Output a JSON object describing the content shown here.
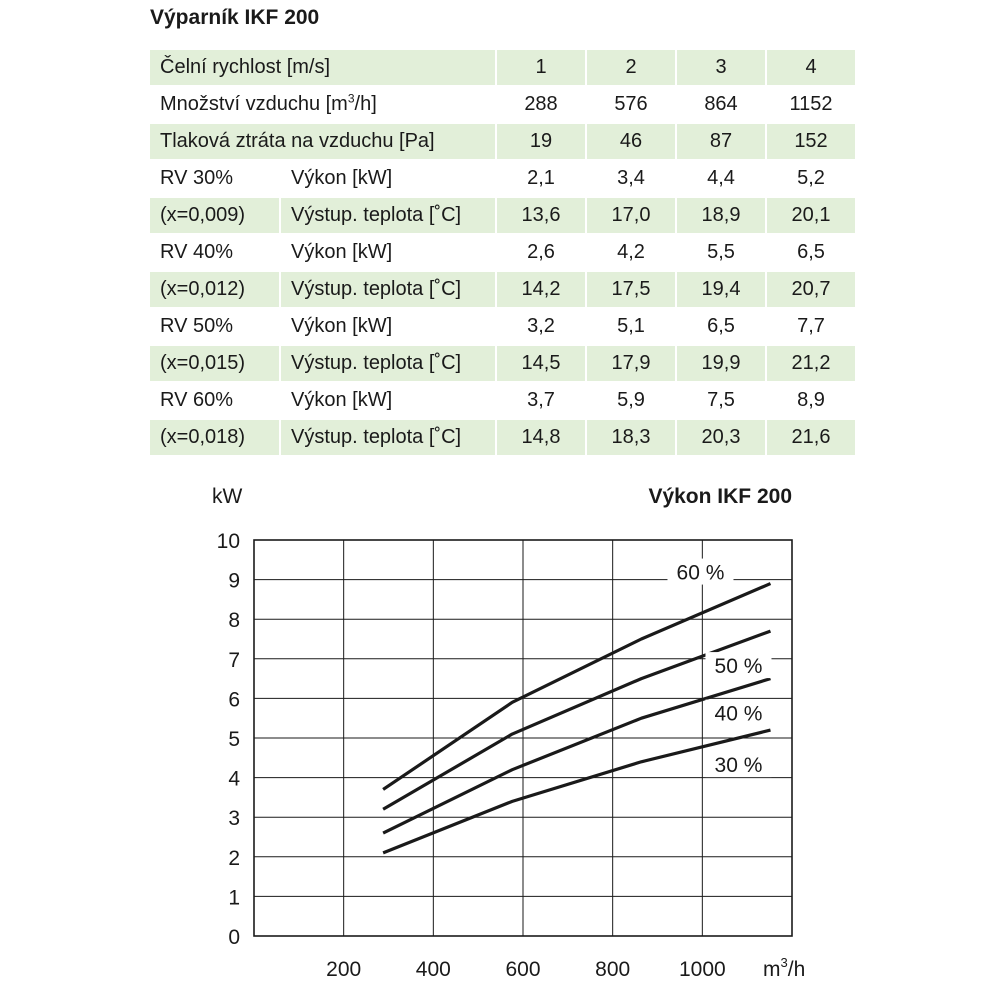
{
  "table": {
    "title": "Výparník IKF 200",
    "rows": [
      {
        "label": "Čelní rychlost [m/s]",
        "values": [
          "1",
          "2",
          "3",
          "4"
        ],
        "shaded": true
      },
      {
        "label": "Množství vzduchu [m3/h]",
        "label_parts": [
          "Množství vzduchu [m",
          "3",
          "/h]"
        ],
        "values": [
          "288",
          "576",
          "864",
          "1152"
        ],
        "shaded": false
      },
      {
        "label": "Tlaková ztráta na vzduchu [Pa]",
        "values": [
          "19",
          "46",
          "87",
          "152"
        ],
        "shaded": true
      },
      {
        "group": "RV 30%",
        "param": "Výkon [kW]",
        "values": [
          "2,1",
          "3,4",
          "4,4",
          "5,2"
        ],
        "shaded": false
      },
      {
        "group": "(x=0,009)",
        "param": "Výstup. teplota [˚C]",
        "values": [
          "13,6",
          "17,0",
          "18,9",
          "20,1"
        ],
        "shaded": true
      },
      {
        "group": "RV 40%",
        "param": "Výkon [kW]",
        "values": [
          "2,6",
          "4,2",
          "5,5",
          "6,5"
        ],
        "shaded": false
      },
      {
        "group": "(x=0,012)",
        "param": "Výstup. teplota [˚C]",
        "values": [
          "14,2",
          "17,5",
          "19,4",
          "20,7"
        ],
        "shaded": true
      },
      {
        "group": "RV 50%",
        "param": "Výkon [kW]",
        "values": [
          "3,2",
          "5,1",
          "6,5",
          "7,7"
        ],
        "shaded": false
      },
      {
        "group": "(x=0,015)",
        "param": "Výstup. teplota [˚C]",
        "values": [
          "14,5",
          "17,9",
          "19,9",
          "21,2"
        ],
        "shaded": true
      },
      {
        "group": "RV 60%",
        "param": "Výkon [kW]",
        "values": [
          "3,7",
          "5,9",
          "7,5",
          "8,9"
        ],
        "shaded": false
      },
      {
        "group": "(x=0,018)",
        "param": "Výstup. teplota [˚C]",
        "values": [
          "14,8",
          "18,3",
          "20,3",
          "21,6"
        ],
        "shaded": true
      }
    ]
  },
  "chart_data": {
    "type": "line",
    "title": "Výkon IKF 200",
    "ylabel": "kW",
    "xlabel_parts": [
      "m",
      "3",
      "/h"
    ],
    "xlim": [
      0,
      1200
    ],
    "ylim": [
      0,
      10
    ],
    "xticks": [
      200,
      400,
      600,
      800,
      1000
    ],
    "yticks": [
      0,
      1,
      2,
      3,
      4,
      5,
      6,
      7,
      8,
      9,
      10
    ],
    "grid": true,
    "series": [
      {
        "name": "30 %",
        "x": [
          288,
          576,
          864,
          1152
        ],
        "y": [
          2.1,
          3.4,
          4.4,
          5.2
        ]
      },
      {
        "name": "40 %",
        "x": [
          288,
          576,
          864,
          1152
        ],
        "y": [
          2.6,
          4.2,
          5.5,
          6.5
        ]
      },
      {
        "name": "50 %",
        "x": [
          288,
          576,
          864,
          1152
        ],
        "y": [
          3.2,
          5.1,
          6.5,
          7.7
        ]
      },
      {
        "name": "60 %",
        "x": [
          288,
          576,
          864,
          1152
        ],
        "y": [
          3.7,
          5.9,
          7.5,
          8.9
        ]
      }
    ],
    "colors": {
      "line": "#1a1a1a",
      "grid": "#1a1a1a",
      "shade": "#e2efd9"
    }
  }
}
